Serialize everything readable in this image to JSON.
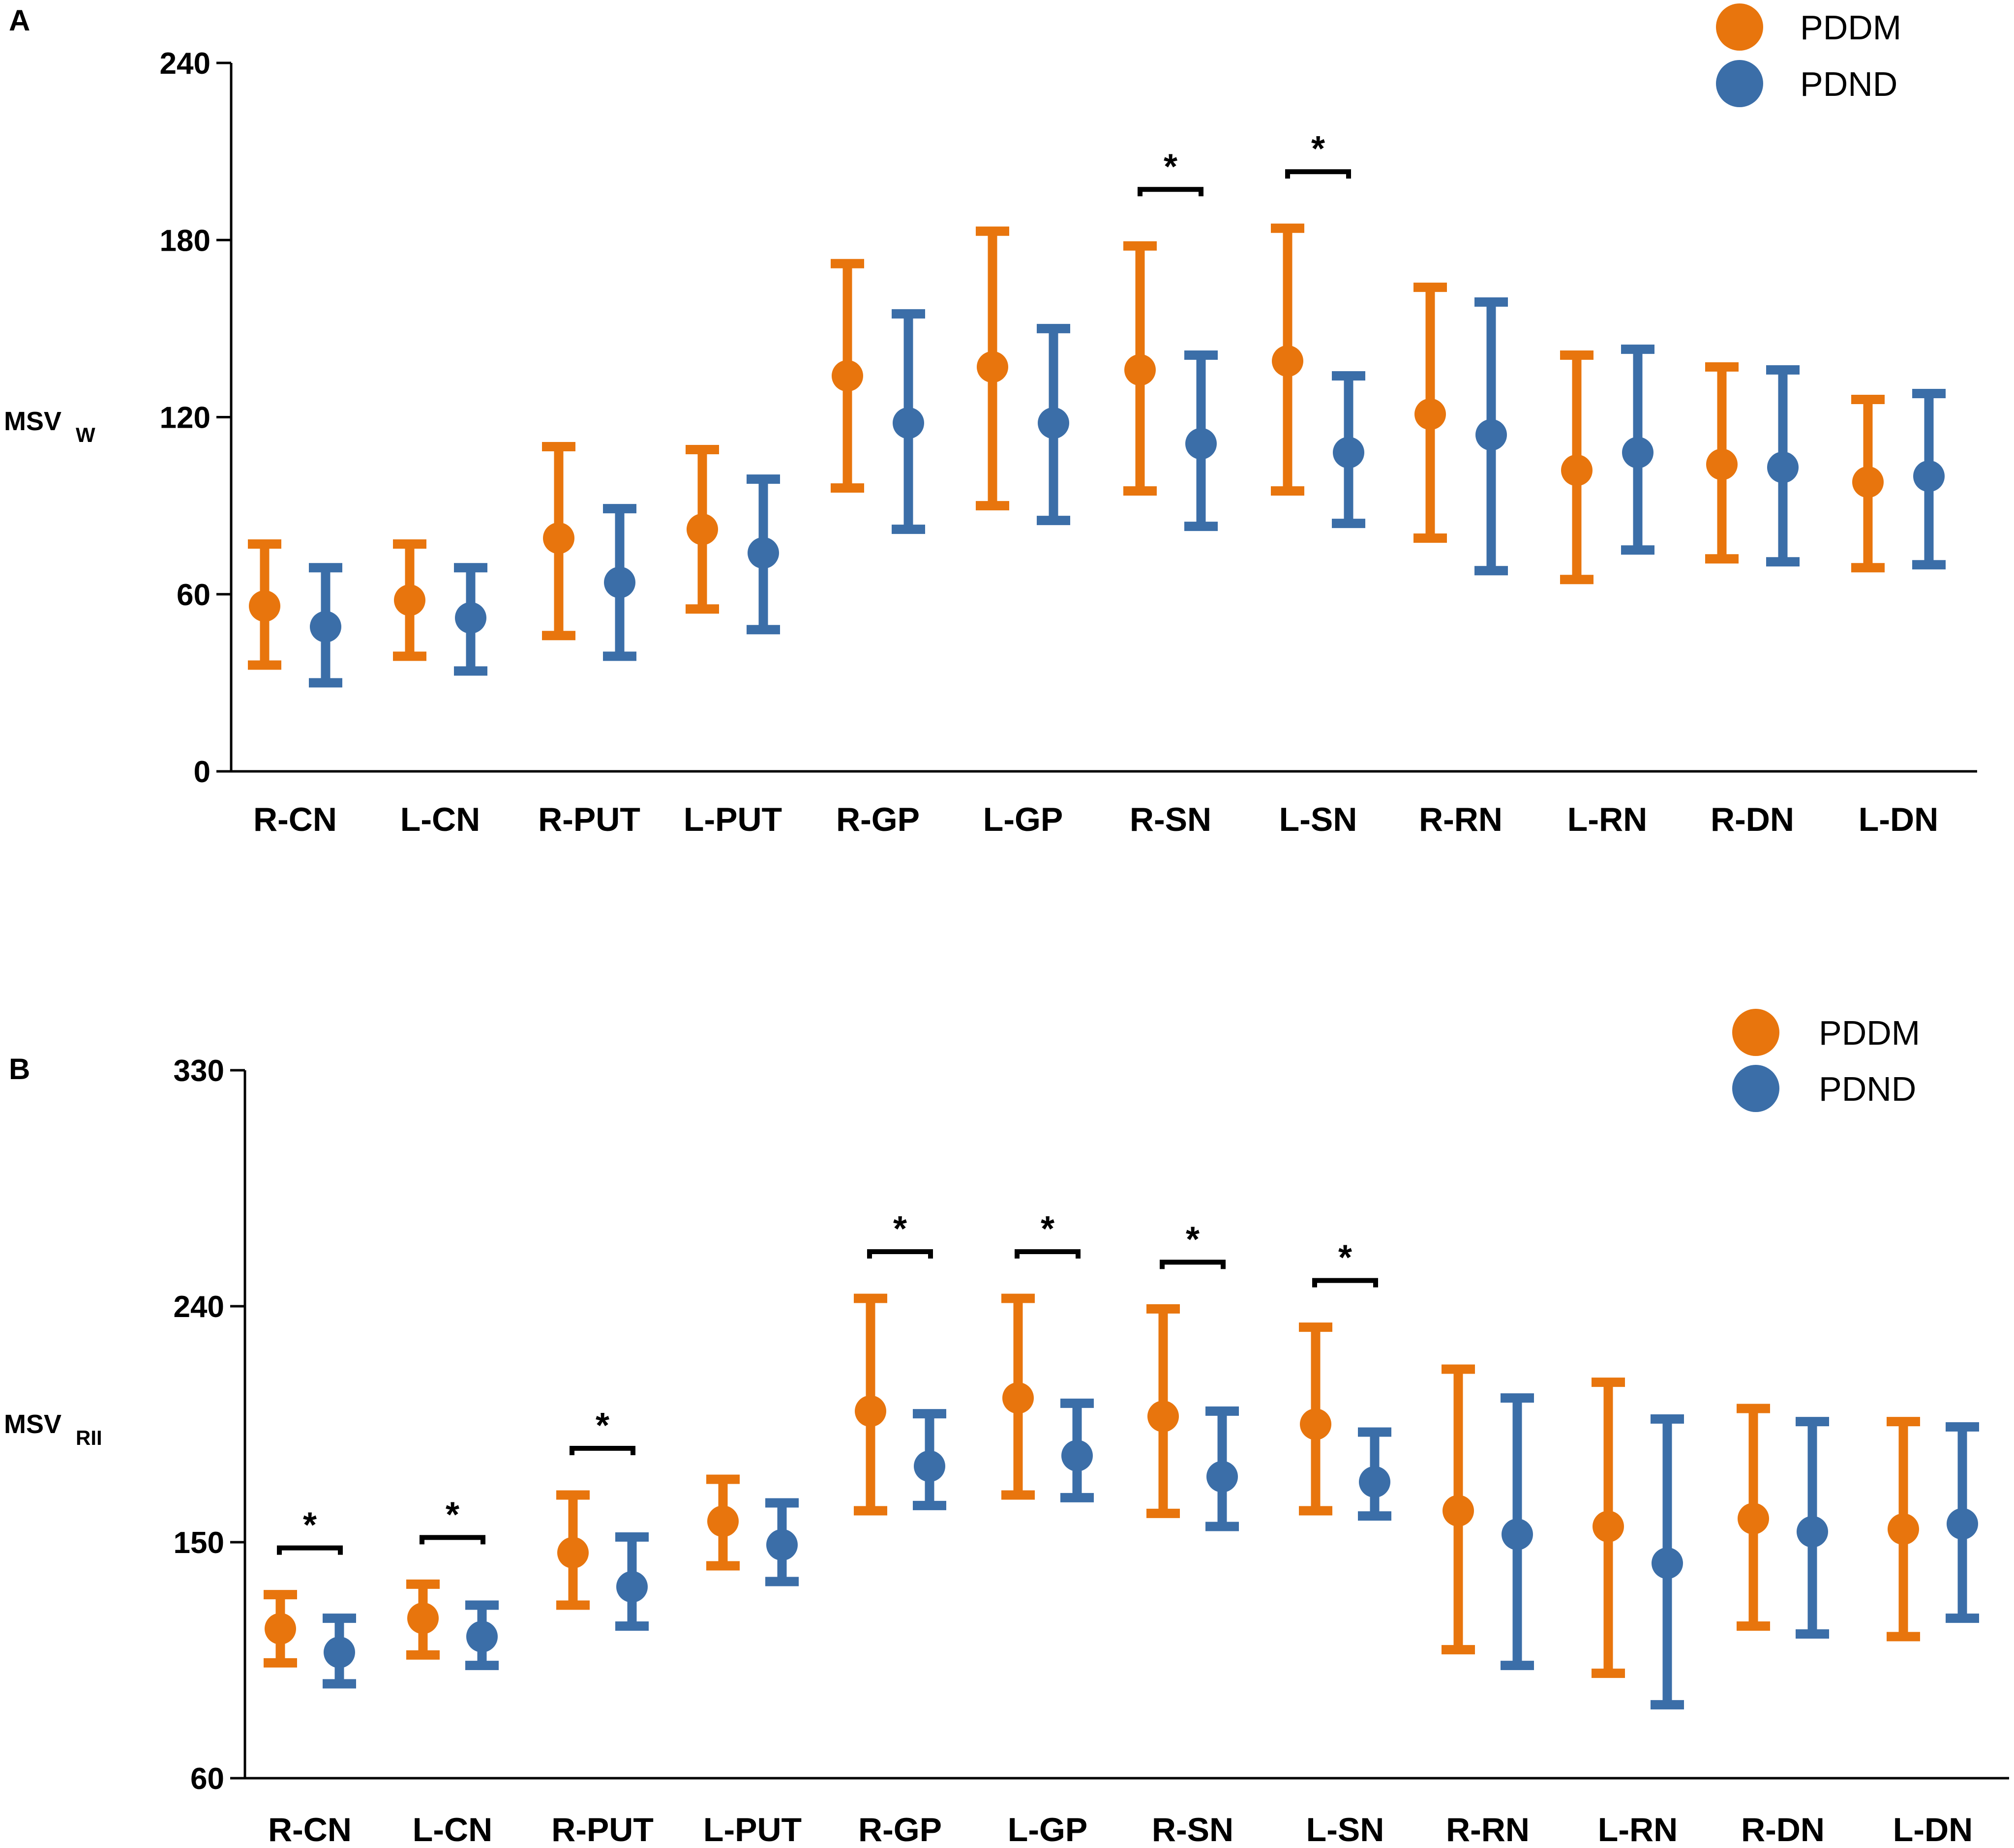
{
  "colors": {
    "PDDM": "#e8750d",
    "PDND": "#3b6ea8"
  },
  "chart_data": [
    {
      "panel": "A",
      "type": "scatter",
      "subtype": "dot with error bars",
      "ylabel": "MSV",
      "ylabel_sub": "W",
      "ylim": [
        0,
        240
      ],
      "yticks": [
        0,
        60,
        120,
        180,
        240
      ],
      "legend": [
        "PDDM",
        "PDND"
      ],
      "legend_position": "top-right",
      "categories": [
        "R-CN",
        "L-CN",
        "R-PUT",
        "L-PUT",
        "R-GP",
        "L-GP",
        "R-SN",
        "L-SN",
        "R-RN",
        "L-RN",
        "R-DN",
        "L-DN"
      ],
      "series": [
        {
          "name": "PDDM",
          "values": [
            56,
            58,
            79,
            82,
            134,
            137,
            136,
            139,
            121,
            102,
            104,
            98
          ],
          "lower": [
            36,
            39,
            46,
            55,
            96,
            90,
            95,
            95,
            79,
            65,
            72,
            69
          ],
          "upper": [
            77,
            77,
            110,
            109,
            172,
            183,
            178,
            184,
            164,
            141,
            137,
            126
          ]
        },
        {
          "name": "PDND",
          "values": [
            49,
            52,
            64,
            74,
            118,
            118,
            111,
            108,
            114,
            108,
            103,
            100
          ],
          "lower": [
            30,
            34,
            39,
            48,
            82,
            85,
            83,
            84,
            68,
            75,
            71,
            70
          ],
          "upper": [
            69,
            69,
            89,
            99,
            155,
            150,
            141,
            134,
            159,
            143,
            136,
            128
          ]
        }
      ],
      "significance": [
        {
          "category": "R-SN",
          "label": "*"
        },
        {
          "category": "L-SN",
          "label": "*"
        }
      ]
    },
    {
      "panel": "B",
      "type": "scatter",
      "subtype": "dot with error bars",
      "ylabel": "MSV",
      "ylabel_sub": "RII",
      "ylim": [
        60,
        330
      ],
      "yticks": [
        60,
        150,
        240,
        330
      ],
      "legend": [
        "PDDM",
        "PDND"
      ],
      "legend_position": "top-right",
      "categories": [
        "R-CN",
        "L-CN",
        "R-PUT",
        "L-PUT",
        "R-GP",
        "L-GP",
        "R-SN",
        "L-SN",
        "R-RN",
        "L-RN",
        "R-DN",
        "L-DN"
      ],
      "series": [
        {
          "name": "PDDM",
          "values": [
            117,
            121,
            146,
            158,
            200,
            205,
            198,
            195,
            162,
            156,
            159,
            155
          ],
          "lower": [
            104,
            107,
            126,
            141,
            162,
            168,
            161,
            162,
            109,
            100,
            118,
            114
          ],
          "upper": [
            130,
            134,
            168,
            174,
            243,
            243,
            239,
            232,
            216,
            211,
            201,
            196
          ],
          "sig_bracket_y": [
            156,
            160,
            196,
            null,
            258,
            266,
            264,
            258,
            null,
            null,
            null,
            null
          ]
        },
        {
          "name": "PDND",
          "values": [
            108,
            114,
            133,
            149,
            179,
            183,
            175,
            173,
            153,
            142,
            154,
            157
          ],
          "lower": [
            96,
            103,
            118,
            135,
            164,
            167,
            156,
            160,
            103,
            88,
            115,
            121
          ],
          "upper": [
            121,
            126,
            152,
            165,
            199,
            203,
            200,
            192,
            205,
            197,
            196,
            194
          ]
        }
      ],
      "significance": [
        {
          "category": "R-CN",
          "label": "*"
        },
        {
          "category": "L-CN",
          "label": "*"
        },
        {
          "category": "R-PUT",
          "label": "*"
        },
        {
          "category": "R-GP",
          "label": "*"
        },
        {
          "category": "L-GP",
          "label": "*"
        },
        {
          "category": "R-SN",
          "label": "*"
        },
        {
          "category": "L-SN",
          "label": "*"
        }
      ]
    }
  ]
}
